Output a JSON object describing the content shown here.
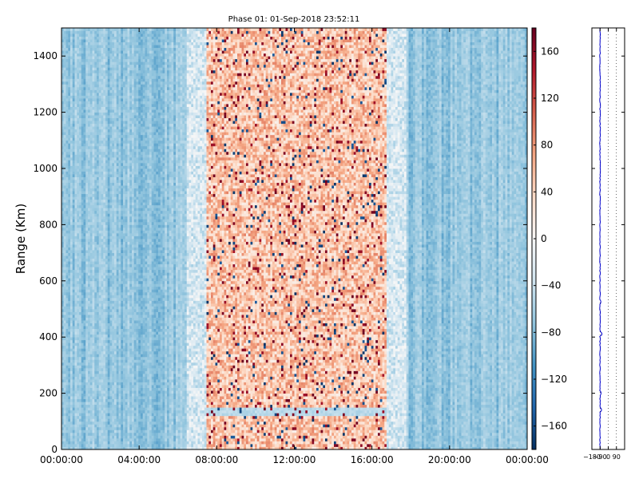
{
  "chart_data": [
    {
      "type": "heatmap",
      "title": "Phase 01: 01-Sep-2018 23:52:11",
      "xlabel": "",
      "ylabel": "Range (Km)",
      "xlim_hours": [
        0,
        24
      ],
      "ylim": [
        0,
        1500
      ],
      "x_ticks": [
        "00:00:00",
        "04:00:00",
        "08:00:00",
        "12:00:00",
        "16:00:00",
        "20:00:00",
        "00:00:00"
      ],
      "y_ticks": [
        0,
        200,
        400,
        600,
        800,
        1000,
        1200,
        1400
      ],
      "colormap": "RdBu_r",
      "color_range": [
        -180,
        180
      ],
      "colorbar_ticks": [
        -160,
        -120,
        -80,
        -40,
        0,
        40,
        80,
        120,
        160
      ],
      "daytime_band_hours": [
        7.5,
        16.8
      ],
      "night_phase_approx": -70,
      "day_phase_approx": 50,
      "low_range_band_km": [
        120,
        150
      ],
      "grid": false
    },
    {
      "type": "line",
      "title": "",
      "xlabel": "",
      "ylabel": "",
      "xlim": [
        -180,
        180
      ],
      "ylim": [
        0,
        1500
      ],
      "x_ticks": [
        "−180",
        "−90",
        "0",
        "90"
      ],
      "x_tick_values": [
        -180,
        -90,
        0,
        90
      ],
      "grid": true,
      "line_color": "#0000cc",
      "x_center": -90,
      "spikes": [
        {
          "y": 140,
          "x": -75
        },
        {
          "y": 200,
          "x": -80
        },
        {
          "y": 410,
          "x": -70
        },
        {
          "y": 525,
          "x": -82
        }
      ]
    }
  ],
  "colors": {
    "axis": "#000000",
    "line": "#0000cc"
  }
}
